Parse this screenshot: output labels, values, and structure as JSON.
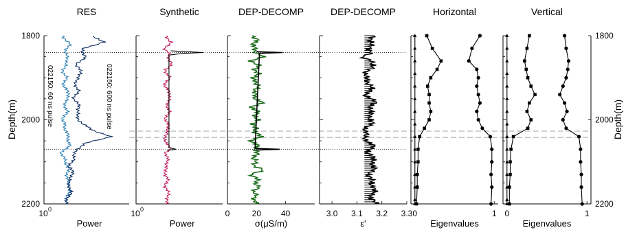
{
  "chart_data": {
    "type": "line",
    "depth_axis": {
      "label": "Depth(m)",
      "range": [
        1800,
        2200
      ],
      "ticks": [
        "1800",
        "2000",
        "2200"
      ]
    },
    "dotted_depths": [
      1840,
      2070
    ],
    "dashed_depths": [
      2027,
      2042
    ],
    "panels": [
      {
        "title": "RES",
        "xlabel": "Power",
        "xtick_labels": [
          "10",
          "0"
        ],
        "xlim": [
          0,
          1
        ],
        "series": [
          {
            "name": "022150: 60 ns pulse",
            "color": "#2a7fb4",
            "depth": [
              1800,
              1820,
              1840,
              1860,
              1880,
              1900,
              1920,
              1940,
              1960,
              1980,
              2000,
              2020,
              2040,
              2060,
              2080,
              2100,
              2120,
              2140,
              2160,
              2180,
              2200
            ],
            "values": [
              0.22,
              0.3,
              0.25,
              0.28,
              0.22,
              0.26,
              0.23,
              0.3,
              0.24,
              0.27,
              0.22,
              0.25,
              0.28,
              0.3,
              0.2,
              0.26,
              0.28,
              0.27,
              0.3,
              0.28,
              0.25
            ]
          },
          {
            "name": "022150: 600 ns pulse",
            "color": "#0b2a5e",
            "depth": [
              1800,
              1815,
              1830,
              1850,
              1870,
              1890,
              1910,
              1930,
              1950,
              1970,
              1990,
              2010,
              2025,
              2040,
              2055,
              2070,
              2090,
              2110,
              2130,
              2150,
              2170,
              2190,
              2200
            ],
            "values": [
              0.55,
              0.72,
              0.45,
              0.48,
              0.38,
              0.44,
              0.36,
              0.4,
              0.35,
              0.42,
              0.38,
              0.45,
              0.58,
              0.78,
              0.5,
              0.38,
              0.35,
              0.3,
              0.34,
              0.28,
              0.32,
              0.27,
              0.26
            ]
          }
        ]
      },
      {
        "title": "Synthetic",
        "xlabel": "Power",
        "xtick_labels": [
          "10",
          "0"
        ],
        "xlim": [
          0,
          1
        ],
        "series": [
          {
            "color": "#c2185b",
            "depth": [
              1800,
              1815,
              1830,
              1840,
              1850,
              1865,
              1880,
              1900,
              1920,
              1940,
              1960,
              1980,
              2000,
              2020,
              2040,
              2060,
              2070,
              2080,
              2100,
              2120,
              2140,
              2160,
              2180,
              2200
            ],
            "values": [
              0.35,
              0.4,
              0.33,
              0.38,
              0.36,
              0.42,
              0.34,
              0.38,
              0.33,
              0.4,
              0.36,
              0.38,
              0.34,
              0.38,
              0.33,
              0.36,
              0.4,
              0.34,
              0.37,
              0.33,
              0.36,
              0.34,
              0.38,
              0.34
            ]
          },
          {
            "color": "#000000",
            "depth": [
              1836,
              1840,
              1842,
              1846,
              2066,
              2070,
              2073
            ],
            "values": [
              0.4,
              0.78,
              0.55,
              0.38,
              0.38,
              0.46,
              0.36
            ]
          }
        ]
      },
      {
        "title": "DEP-DECOMP",
        "xlabel": "σ(μS/m)",
        "xtick_labels": [
          "0",
          "20",
          "40"
        ],
        "xlim": [
          0,
          60
        ],
        "series": [
          {
            "color": "#1b6b1b",
            "depth": [
              1800,
              1810,
              1820,
              1830,
              1840,
              1850,
              1860,
              1870,
              1880,
              1890,
              1900,
              1910,
              1920,
              1930,
              1940,
              1950,
              1960,
              1970,
              1980,
              1990,
              2000,
              2010,
              2020,
              2030,
              2040,
              2050,
              2060,
              2070,
              2080,
              2090,
              2100,
              2110,
              2120,
              2130,
              2140,
              2150,
              2160,
              2170,
              2180,
              2190,
              2200
            ],
            "values": [
              17,
              22,
              16,
              20,
              19,
              24,
              17,
              21,
              18,
              23,
              16,
              20,
              22,
              17,
              21,
              18,
              24,
              17,
              20,
              19,
              22,
              16,
              21,
              18,
              23,
              17,
              20,
              19,
              22,
              16,
              21,
              18,
              24,
              17,
              20,
              19,
              23,
              16,
              21,
              18,
              19
            ]
          },
          {
            "color": "#000000",
            "depth": [
              1838,
              1840,
              1842,
              2068,
              2070,
              2072
            ],
            "values": [
              20,
              38,
              22,
              19,
              36,
              20
            ]
          }
        ]
      },
      {
        "title": "DEP-DECOMP",
        "xlabel": "ε'",
        "xtick_labels": [
          "3.0",
          "3.1",
          "3.2",
          "3.3"
        ],
        "xlim": [
          2.95,
          3.3
        ],
        "series": [
          {
            "color": "#000000",
            "depth": [
              1800,
              1820,
              1840,
              1850,
              1860,
              1880,
              1900,
              1920,
              1940,
              1960,
              1980,
              2000,
              2020,
              2040,
              2060,
              2080,
              2100,
              2120,
              2140,
              2160,
              2180,
              2200
            ],
            "values": [
              3.17,
              3.15,
              3.16,
              3.11,
              3.17,
              3.15,
              3.13,
              3.16,
              3.14,
              3.17,
              3.15,
              3.16,
              3.14,
              3.13,
              3.16,
              3.15,
              3.17,
              3.16,
              3.15,
              3.17,
              3.16,
              3.17
            ]
          }
        ]
      },
      {
        "title": "Horizontal",
        "xlabel": "Eigenvalues",
        "xtick_labels": [
          "0",
          "1"
        ],
        "xlim": [
          -0.05,
          1.05
        ],
        "series": [
          {
            "color": "#000000",
            "marker": "triangle",
            "depth": [
              1800,
              1830,
              1860,
              1890,
              1920,
              1950,
              1980,
              2010,
              2040,
              2070,
              2100,
              2130,
              2160,
              2190,
              2200
            ],
            "values": [
              0,
              0,
              0,
              0,
              0,
              0,
              0,
              0,
              0,
              0,
              0,
              0,
              0,
              0,
              0
            ]
          },
          {
            "color": "#000000",
            "marker": "square",
            "depth": [
              1800,
              1830,
              1860,
              1880,
              1900,
              1920,
              1940,
              1960,
              1980,
              2000,
              2020,
              2040,
              2070,
              2100,
              2130,
              2160,
              2200
            ],
            "values": [
              0.15,
              0.22,
              0.33,
              0.28,
              0.2,
              0.16,
              0.18,
              0.18,
              0.2,
              0.18,
              0.12,
              0.06,
              0.04,
              0.04,
              0.03,
              0.03,
              0.02
            ]
          },
          {
            "color": "#000000",
            "marker": "circle",
            "depth": [
              1800,
              1830,
              1860,
              1880,
              1900,
              1920,
              1940,
              1960,
              1980,
              2000,
              2020,
              2040,
              2070,
              2100,
              2130,
              2160,
              2200
            ],
            "values": [
              0.82,
              0.72,
              0.68,
              0.78,
              0.8,
              0.78,
              0.8,
              0.82,
              0.78,
              0.8,
              0.85,
              0.95,
              0.97,
              0.97,
              0.96,
              0.97,
              0.96
            ]
          }
        ]
      },
      {
        "title": "Vertical",
        "xlabel": "Eigenvalues",
        "xtick_labels": [
          "0",
          "1"
        ],
        "xlim": [
          -0.05,
          1.05
        ],
        "series": [
          {
            "color": "#000000",
            "marker": "triangle",
            "depth": [
              1800,
              1830,
              1860,
              1890,
              1920,
              1950,
              1980,
              2010,
              2040,
              2070,
              2100,
              2130,
              2160,
              2190,
              2200
            ],
            "values": [
              0,
              0,
              0,
              0,
              0,
              0,
              0,
              0,
              0,
              0,
              0,
              0,
              0,
              0,
              0
            ]
          },
          {
            "color": "#000000",
            "marker": "square",
            "depth": [
              1800,
              1830,
              1860,
              1880,
              1900,
              1920,
              1940,
              1960,
              1980,
              2000,
              2020,
              2040,
              2070,
              2100,
              2130,
              2160,
              2200
            ],
            "values": [
              0.28,
              0.25,
              0.22,
              0.24,
              0.26,
              0.3,
              0.35,
              0.28,
              0.25,
              0.3,
              0.26,
              0.08,
              0.05,
              0.04,
              0.04,
              0.03,
              0.03
            ]
          },
          {
            "color": "#000000",
            "marker": "circle",
            "depth": [
              1800,
              1830,
              1860,
              1880,
              1900,
              1920,
              1940,
              1960,
              1980,
              2000,
              2020,
              2040,
              2070,
              2100,
              2130,
              2160,
              2200
            ],
            "values": [
              0.72,
              0.74,
              0.77,
              0.76,
              0.74,
              0.7,
              0.66,
              0.72,
              0.75,
              0.7,
              0.74,
              0.9,
              0.92,
              0.92,
              0.93,
              0.93,
              0.94
            ]
          }
        ]
      }
    ]
  }
}
